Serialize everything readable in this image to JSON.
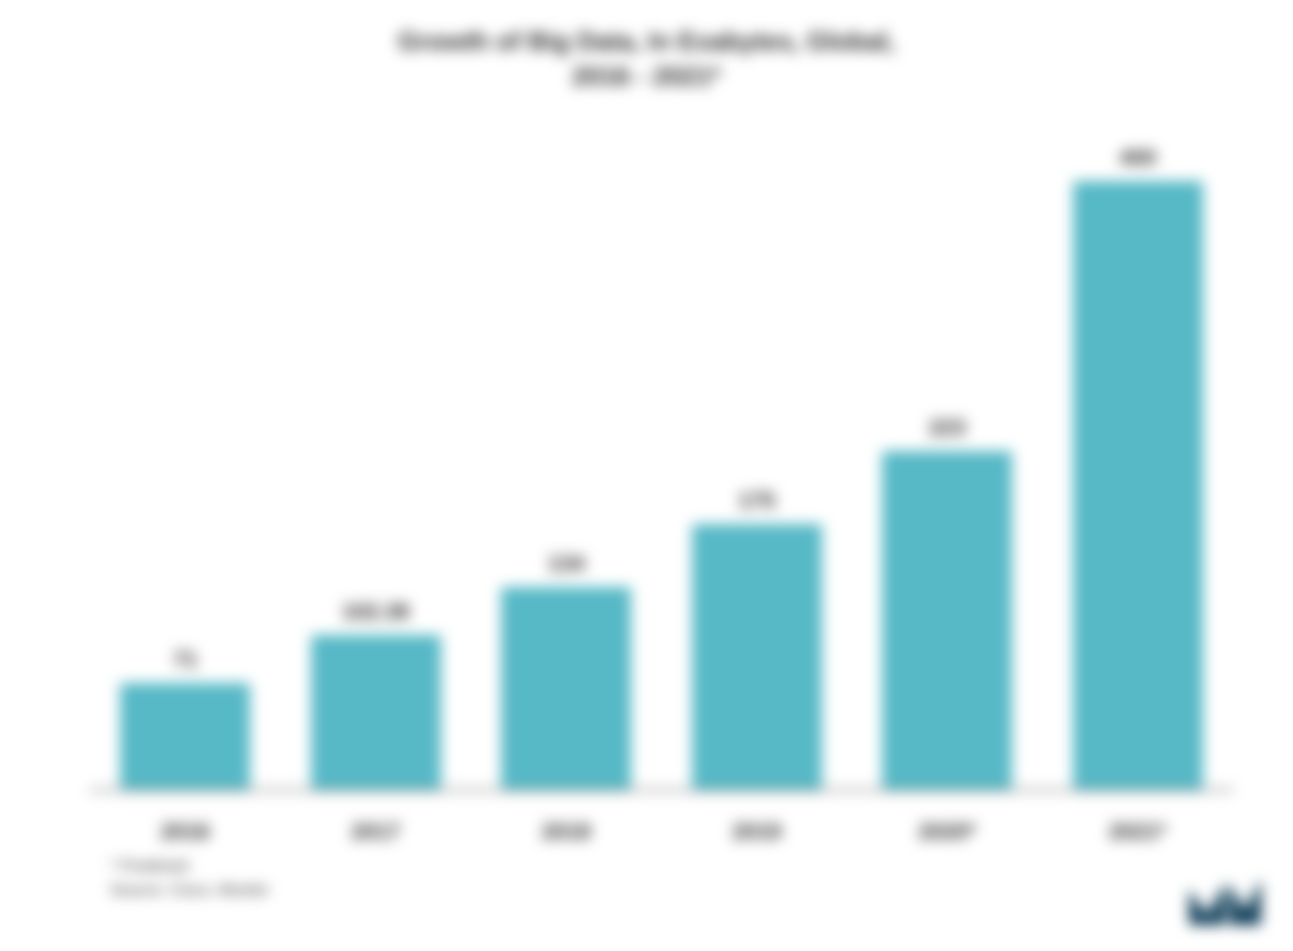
{
  "chart": {
    "type": "bar",
    "title_line1": "Growth of Big Data, In Exabytes, Global,",
    "title_line2": "2016 - 2021*",
    "title_fontsize": 26,
    "categories": [
      "2016",
      "2017",
      "2018",
      "2019",
      "2020*",
      "2021*"
    ],
    "values": [
      71,
      102.38,
      134,
      175,
      223,
      400
    ],
    "value_labels": [
      "71",
      "102.38",
      "134",
      "175",
      "223",
      "400"
    ],
    "bar_color": "#57b9c6",
    "value_label_fontsize": 22,
    "category_label_fontsize": 22,
    "ymax": 440,
    "bar_width_ratio": 0.68,
    "background_color": "#ffffff",
    "axis_color": "#666666",
    "text_color": "#2b2b2b"
  },
  "footnotes": {
    "line1": "* Predicted",
    "line2": "Source: Cisco, Mordor",
    "fontsize": 16
  },
  "logo": {
    "fill": "#0d3c57",
    "letters": "M"
  }
}
